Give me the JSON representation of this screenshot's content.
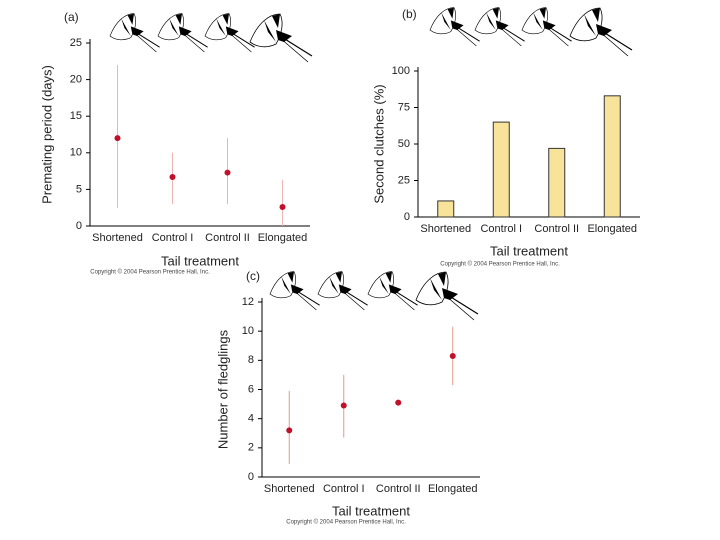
{
  "chart_data": [
    {
      "type": "scatter",
      "label": "(a)",
      "y_label": "Premating period (days)",
      "x_label": "Tail treatment",
      "footer": "Copyright © 2004 Pearson Prentice Hall, Inc.",
      "categories": [
        "Shortened",
        "Control I",
        "Control II",
        "Elongated"
      ],
      "values": [
        12,
        6.7,
        7.3,
        2.6
      ],
      "lower": [
        2.5,
        3,
        3,
        0
      ],
      "upper": [
        22,
        10,
        12,
        6.3
      ],
      "color": "#c0102a",
      "error_color": "#ecb4b4",
      "ylim": [
        0,
        25
      ],
      "yticks": [
        0,
        5,
        10,
        15,
        20,
        25
      ]
    },
    {
      "type": "bar",
      "label": "(b)",
      "y_label": "Second clutches (%)",
      "x_label": "Tail treatment",
      "footer": "Copyright © 2004 Pearson Prentice Hall, Inc.",
      "categories": [
        "Shortened",
        "Control I",
        "Control II",
        "Elongated"
      ],
      "values": [
        11,
        65,
        47,
        83
      ],
      "color": "#f8e39b",
      "ylim": [
        0,
        100
      ],
      "yticks": [
        0,
        25,
        50,
        75,
        100
      ]
    },
    {
      "type": "scatter",
      "label": "(c)",
      "y_label": "Number of fledglings",
      "x_label": "Tail treatment",
      "footer": "Copyright © 2004 Pearson Prentice Hall, Inc.",
      "categories": [
        "Shortened",
        "Control I",
        "Control II",
        "Elongated"
      ],
      "values": [
        3.2,
        4.9,
        5.1,
        8.3
      ],
      "lower": [
        0.9,
        2.7,
        null,
        6.3
      ],
      "upper": [
        5.9,
        7,
        null,
        10.3
      ],
      "color": "#c0102a",
      "error_color": "#e09a88",
      "ylim": [
        0,
        12
      ],
      "yticks": [
        0,
        2,
        4,
        6,
        8,
        10,
        12
      ]
    }
  ]
}
